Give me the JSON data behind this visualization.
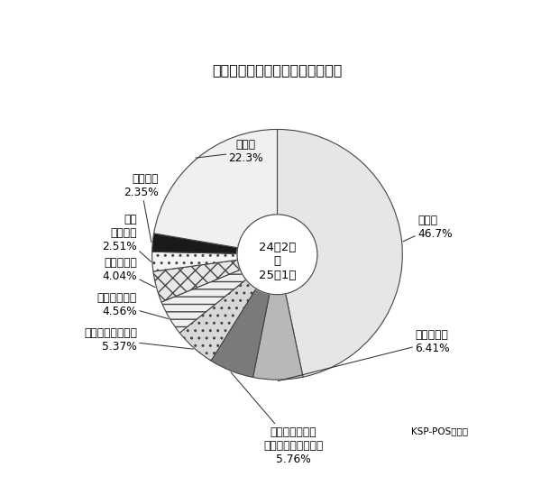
{
  "title": "メーカーシェア（お吸い物除く）",
  "center_line1": "24年2月",
  "center_line2": "～",
  "center_line3": "25年1月",
  "footnote": "KSP-POSデータ",
  "slices": [
    {
      "name": "味の素",
      "pct": 46.7,
      "color": "#e6e6e6",
      "hatch": null
    },
    {
      "name": "名古屋製酪",
      "pct": 6.41,
      "color": "#b8b8b8",
      "hatch": null
    },
    {
      "name": "ポッカサッポロ\nフード＆ビバレッジ",
      "pct": 5.76,
      "color": "#7a7a7a",
      "hatch": null
    },
    {
      "name": "シジシージャパン",
      "pct": 5.37,
      "color": "#d8d8d8",
      "hatch": ".."
    },
    {
      "name": "エースコック",
      "pct": 4.56,
      "color": "#f0f0f0",
      "hatch": "--"
    },
    {
      "name": "日本生協連",
      "pct": 4.04,
      "color": "#e8e8e8",
      "hatch": "xx"
    },
    {
      "name": "理研\nビタミン",
      "pct": 2.51,
      "color": "#f5f5f5",
      "hatch": ".."
    },
    {
      "name": "東洋水産",
      "pct": 2.35,
      "color": "#1a1a1a",
      "hatch": null
    },
    {
      "name": "その他",
      "pct": 22.3,
      "color": "#f0f0f0",
      "hatch": null
    }
  ],
  "bg_color": "#ffffff",
  "outer_r": 1.0,
  "inner_r": 0.32,
  "startangle": 90,
  "edgecolor": "#444444",
  "linewidth": 0.8
}
